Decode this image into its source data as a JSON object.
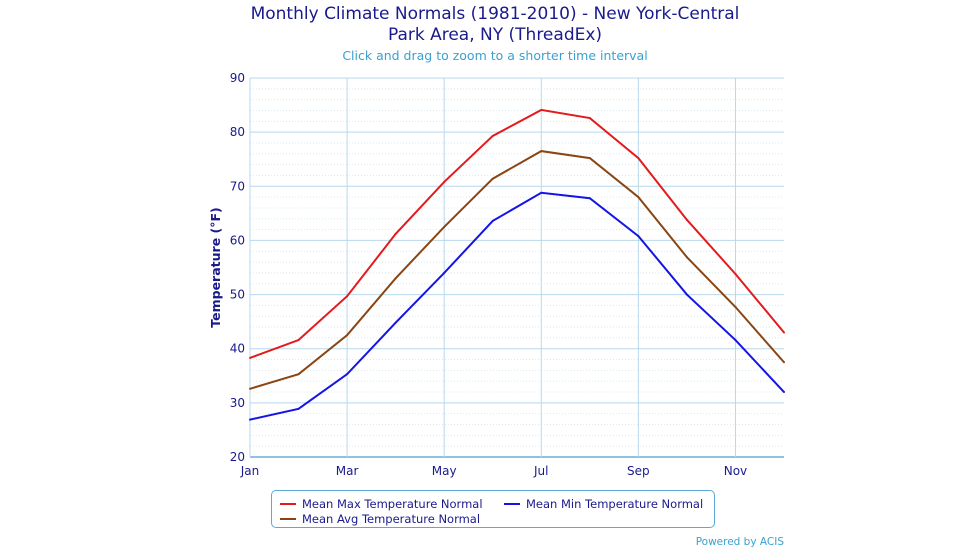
{
  "chart_data": {
    "type": "line",
    "title": "Monthly Climate Normals (1981-2010) - New York-Central Park Area, NY (ThreadEx)",
    "title_lines": [
      "Monthly Climate Normals (1981-2010) - New York-Central",
      "Park Area, NY (ThreadEx)"
    ],
    "subtitle": "Click and drag to zoom to a shorter time interval",
    "xlabel": "",
    "ylabel": "Temperature (°F)",
    "ylim": [
      20,
      90
    ],
    "yticks": [
      20,
      30,
      40,
      50,
      60,
      70,
      80,
      90
    ],
    "x": [
      "Jan",
      "Feb",
      "Mar",
      "Apr",
      "May",
      "Jun",
      "Jul",
      "Aug",
      "Sep",
      "Oct",
      "Nov",
      "Dec"
    ],
    "xtick_labels": [
      "Jan",
      "Mar",
      "May",
      "Jul",
      "Sep",
      "Nov"
    ],
    "grid": true,
    "legend_placement": "bottom",
    "series": [
      {
        "name": "Mean Max Temperature Normal",
        "color": "#e41a1c",
        "values": [
          38.3,
          41.6,
          49.7,
          61.2,
          70.8,
          79.3,
          84.1,
          82.6,
          75.2,
          63.8,
          53.8,
          43.0
        ]
      },
      {
        "name": "Mean Min Temperature Normal",
        "color": "#1414e6",
        "values": [
          26.9,
          28.9,
          35.3,
          44.8,
          54.0,
          63.6,
          68.8,
          67.8,
          60.8,
          50.0,
          41.6,
          32.0
        ]
      },
      {
        "name": "Mean Avg Temperature Normal",
        "color": "#8b4513",
        "values": [
          32.6,
          35.3,
          42.5,
          53.0,
          62.5,
          71.4,
          76.5,
          75.2,
          68.0,
          56.9,
          47.7,
          37.5
        ]
      }
    ],
    "credit": "Powered by ACIS"
  }
}
